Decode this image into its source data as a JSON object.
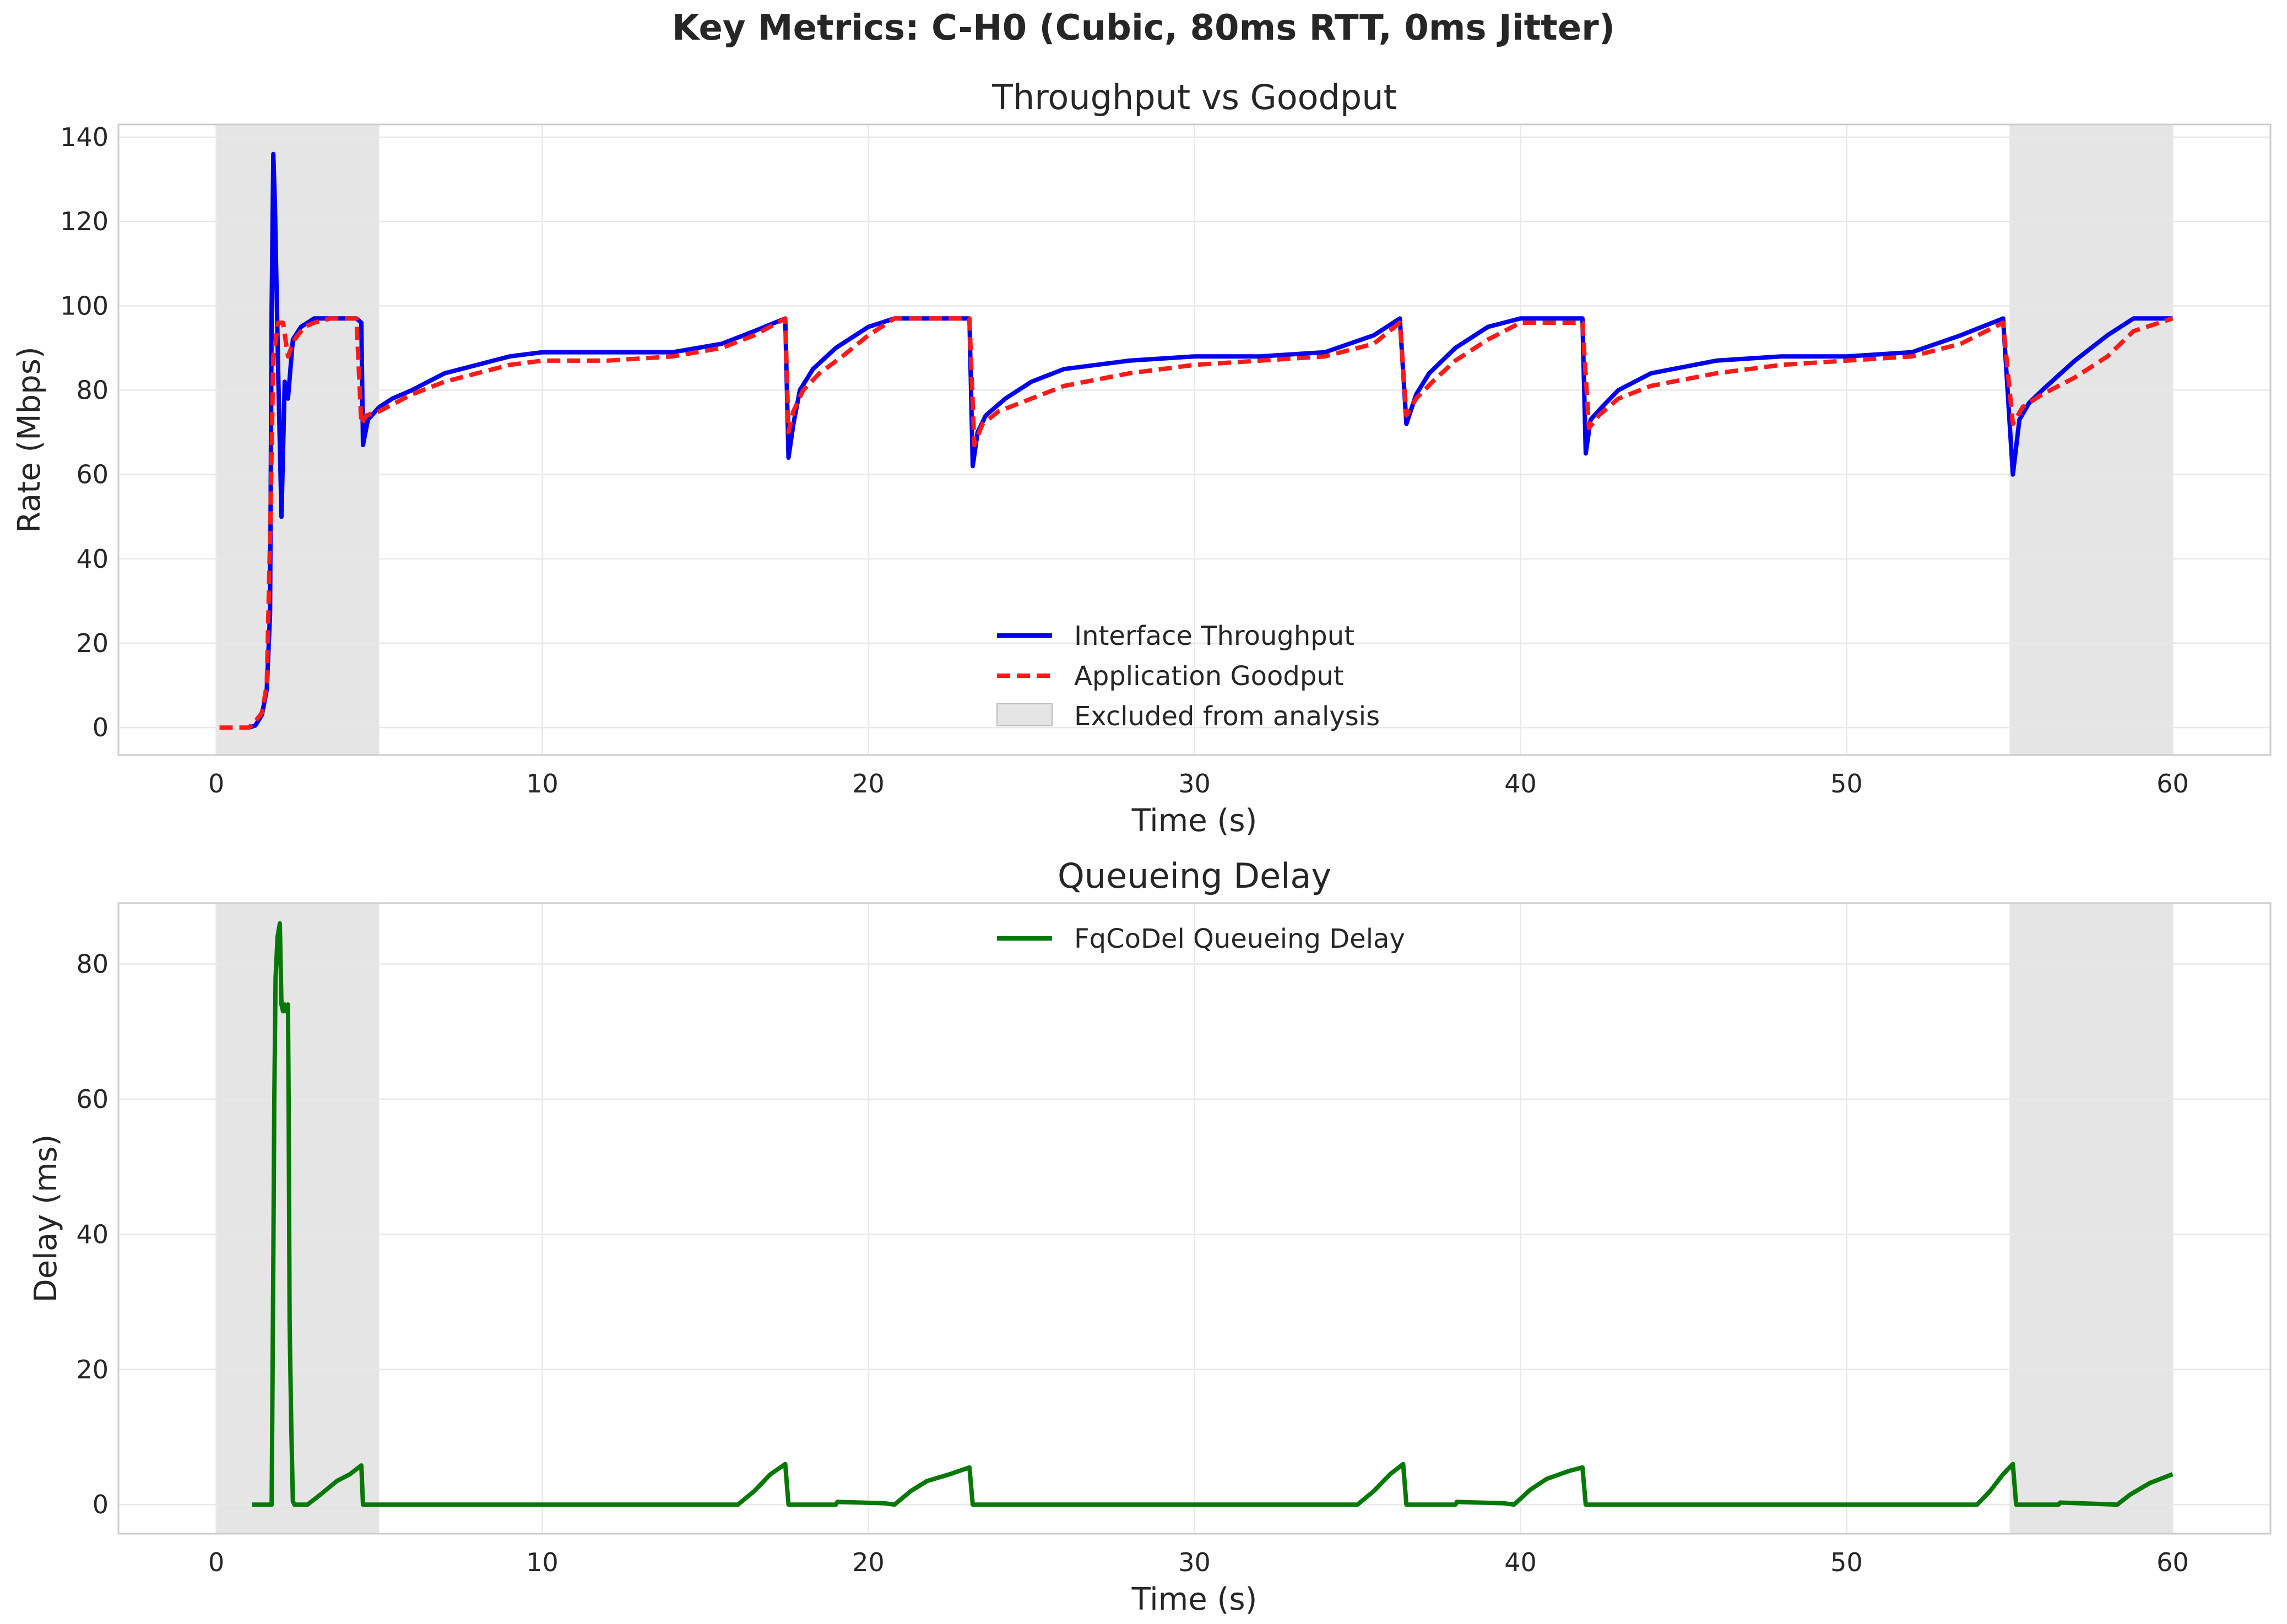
{
  "figure": {
    "suptitle": "Key Metrics: C-H0 (Cubic, 80ms RTT, 0ms Jitter)"
  },
  "colors": {
    "throughput": "#0000ee",
    "goodput": "#ff1a1a",
    "delay": "#067806",
    "excluded": "#d3d3d3",
    "grid": "#e8e8e8",
    "spine": "#cccccc"
  },
  "chart_data": [
    {
      "type": "line",
      "title": "Throughput vs Goodput",
      "xlabel": "Time (s)",
      "ylabel": "Rate (Mbps)",
      "xlim": [
        -3,
        63
      ],
      "ylim": [
        -6.5,
        143
      ],
      "xticks": [
        0,
        10,
        20,
        30,
        40,
        50,
        60
      ],
      "yticks": [
        0,
        20,
        40,
        60,
        80,
        100,
        120,
        140
      ],
      "grid": true,
      "legend_position": "lower-center",
      "excluded_regions": [
        [
          0,
          5
        ],
        [
          55,
          60
        ]
      ],
      "legend": [
        {
          "label": "Interface Throughput",
          "style": "solid",
          "color": "#0000ee"
        },
        {
          "label": "Application Goodput",
          "style": "dashed",
          "color": "#ff1a1a"
        },
        {
          "label": "Excluded from analysis",
          "style": "patch",
          "color": "#d3d3d3"
        }
      ],
      "series": [
        {
          "name": "Interface Throughput",
          "x": [
            1.0,
            1.2,
            1.4,
            1.55,
            1.65,
            1.7,
            1.75,
            1.8,
            1.9,
            2.0,
            2.1,
            2.2,
            2.35,
            2.6,
            3.0,
            3.3,
            4.3,
            4.45,
            4.5,
            4.65,
            5.0,
            5.4,
            6.0,
            6.5,
            7.0,
            8.0,
            9.0,
            10.0,
            12.0,
            14.0,
            15.5,
            16.5,
            17.45,
            17.55,
            17.7,
            17.9,
            18.3,
            19.0,
            20.0,
            20.8,
            21.5,
            23.1,
            23.2,
            23.35,
            23.6,
            24.2,
            25.0,
            26.0,
            28.0,
            30.0,
            32.0,
            34.0,
            35.5,
            36.3,
            36.5,
            36.8,
            37.2,
            38.0,
            39.0,
            40.0,
            41.9,
            42.0,
            42.15,
            42.5,
            43.0,
            44.0,
            46.0,
            48.0,
            50.0,
            52.0,
            53.5,
            54.8,
            55.1,
            55.3,
            55.6,
            56.0,
            57.0,
            58.0,
            58.8,
            60.0
          ],
          "values": [
            0,
            0.5,
            3,
            9,
            27,
            100,
            136,
            124,
            84,
            50,
            82,
            78,
            92,
            95,
            97,
            97,
            97,
            96,
            67,
            73,
            76,
            78,
            80,
            82,
            84,
            86,
            88,
            89,
            89,
            89,
            91,
            94,
            97,
            64,
            72,
            80,
            85,
            90,
            95,
            97,
            97,
            97,
            62,
            70,
            74,
            78,
            82,
            85,
            87,
            88,
            88,
            89,
            93,
            97,
            72,
            79,
            84,
            90,
            95,
            97,
            97,
            65,
            73,
            76,
            80,
            84,
            87,
            88,
            88,
            89,
            93,
            97,
            60,
            73,
            77,
            80,
            87,
            93,
            97,
            97
          ]
        },
        {
          "name": "Application Goodput",
          "x": [
            0.1,
            0.8,
            1.0,
            1.2,
            1.4,
            1.55,
            1.65,
            1.75,
            1.9,
            2.05,
            2.2,
            2.4,
            2.7,
            3.0,
            3.5,
            4.3,
            4.45,
            4.6,
            5.0,
            5.5,
            6.0,
            7.0,
            8.0,
            9.0,
            10.0,
            12.0,
            14.0,
            15.5,
            16.5,
            17.45,
            17.55,
            17.7,
            18.0,
            18.5,
            19.2,
            20.0,
            20.8,
            23.1,
            23.25,
            23.5,
            24.0,
            25.0,
            26.0,
            28.0,
            30.0,
            32.0,
            34.0,
            35.5,
            36.3,
            36.5,
            36.8,
            37.3,
            38.0,
            39.0,
            40.0,
            41.9,
            42.1,
            42.4,
            43.0,
            44.0,
            46.0,
            48.0,
            50.0,
            52.0,
            53.5,
            54.8,
            55.1,
            55.4,
            56.0,
            57.0,
            58.0,
            58.8,
            60.0
          ],
          "values": [
            0,
            0,
            0,
            1.5,
            3.5,
            10,
            45,
            88,
            96,
            96,
            88,
            92,
            95,
            96,
            97,
            97,
            72,
            74,
            75,
            77,
            79,
            82,
            84,
            86,
            87,
            87,
            88,
            90,
            93,
            97,
            70,
            75,
            80,
            84,
            88,
            93,
            97,
            97,
            67,
            72,
            75,
            78,
            81,
            84,
            86,
            87,
            88,
            91,
            96,
            74,
            78,
            82,
            87,
            92,
            96,
            96,
            71,
            74,
            78,
            81,
            84,
            86,
            87,
            88,
            91,
            96,
            72,
            76,
            79,
            83,
            88,
            94,
            97
          ]
        }
      ]
    },
    {
      "type": "line",
      "title": "Queueing Delay",
      "xlabel": "Time (s)",
      "ylabel": "Delay (ms)",
      "xlim": [
        -3,
        63
      ],
      "ylim": [
        -4.3,
        89
      ],
      "xticks": [
        0,
        10,
        20,
        30,
        40,
        50,
        60
      ],
      "yticks": [
        0,
        20,
        40,
        60,
        80
      ],
      "grid": true,
      "legend_position": "upper-center",
      "excluded_regions": [
        [
          0,
          5
        ],
        [
          55,
          60
        ]
      ],
      "legend": [
        {
          "label": "FqCoDel Queueing Delay",
          "style": "solid",
          "color": "#067806"
        }
      ],
      "series": [
        {
          "name": "FqCoDel Queueing Delay",
          "x": [
            1.1,
            1.7,
            1.72,
            1.75,
            1.78,
            1.82,
            1.88,
            1.95,
            2.0,
            2.05,
            2.1,
            2.15,
            2.2,
            2.22,
            2.25,
            2.3,
            2.35,
            2.4,
            2.5,
            2.8,
            3.2,
            3.7,
            4.1,
            4.45,
            4.5,
            10.0,
            16.0,
            16.5,
            17.0,
            17.45,
            17.55,
            19.0,
            19.05,
            20.5,
            20.8,
            21.3,
            21.8,
            22.5,
            23.1,
            23.2,
            30.0,
            35.0,
            35.5,
            36.0,
            36.4,
            36.5,
            38.0,
            38.05,
            39.5,
            39.8,
            40.3,
            40.8,
            41.5,
            41.9,
            42.0,
            50.0,
            54.0,
            54.4,
            54.8,
            55.1,
            55.2,
            56.5,
            56.55,
            58.3,
            58.7,
            59.3,
            60.0
          ],
          "values": [
            0,
            0,
            14,
            36,
            60,
            78,
            84,
            86,
            74,
            73,
            74,
            73,
            74,
            60,
            27,
            12,
            0.5,
            0,
            0,
            0,
            1.5,
            3.5,
            4.5,
            5.8,
            0,
            0,
            0,
            2,
            4.5,
            6,
            0,
            0,
            0.4,
            0.2,
            0,
            2,
            3.5,
            4.5,
            5.5,
            0,
            0,
            0,
            2,
            4.5,
            6,
            0,
            0,
            0.4,
            0.2,
            0,
            2.2,
            3.8,
            5,
            5.5,
            0,
            0,
            0,
            2,
            4.5,
            6,
            0,
            0,
            0.3,
            0,
            1.5,
            3.2,
            4.5
          ]
        }
      ]
    }
  ]
}
